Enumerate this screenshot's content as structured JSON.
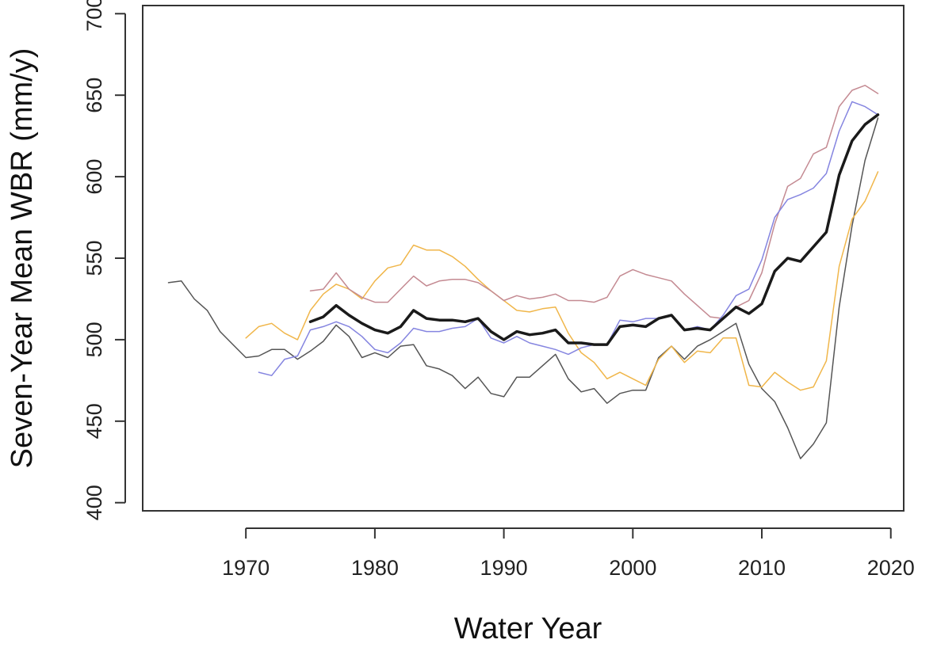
{
  "chart_data": {
    "type": "line",
    "title": "",
    "xlabel": "Water Year",
    "ylabel": "Seven-Year Mean WBR (mm/y)",
    "xlim": [
      1962,
      2021
    ],
    "ylim": [
      395,
      705
    ],
    "xticks": [
      1970,
      1980,
      1990,
      2000,
      2010,
      2020
    ],
    "yticks": [
      400,
      450,
      500,
      550,
      600,
      650,
      700
    ],
    "grid": false,
    "legend": "none",
    "series": [
      {
        "color": "#555555",
        "width": 1.5,
        "x": [
          1964,
          1965,
          1966,
          1967,
          1968,
          1969,
          1970,
          1971,
          1972,
          1973,
          1974,
          1975,
          1976,
          1977,
          1978,
          1979,
          1980,
          1981,
          1982,
          1983,
          1984,
          1985,
          1986,
          1987,
          1988,
          1989,
          1990,
          1991,
          1992,
          1993,
          1994,
          1995,
          1996,
          1997,
          1998,
          1999,
          2000,
          2001,
          2002,
          2003,
          2004,
          2005,
          2006,
          2007,
          2008,
          2009,
          2010,
          2011,
          2012,
          2013,
          2014,
          2015,
          2016,
          2017,
          2018,
          2019
        ],
        "y": [
          535,
          536,
          525,
          518,
          505,
          497,
          489,
          490,
          494,
          494,
          488,
          493,
          499,
          509,
          502,
          489,
          492,
          489,
          496,
          497,
          484,
          482,
          478,
          470,
          477,
          467,
          465,
          477,
          477,
          484,
          491,
          476,
          468,
          470,
          461,
          467,
          469,
          469,
          489,
          496,
          488,
          496,
          500,
          505,
          510,
          485,
          470,
          462,
          446,
          427,
          436,
          449,
          520,
          570,
          610,
          636
        ]
      },
      {
        "color": "#f0b64a",
        "width": 1.5,
        "x": [
          1970,
          1971,
          1972,
          1973,
          1974,
          1975,
          1976,
          1977,
          1978,
          1979,
          1980,
          1981,
          1982,
          1983,
          1984,
          1985,
          1986,
          1987,
          1988,
          1989,
          1990,
          1991,
          1992,
          1993,
          1994,
          1995,
          1996,
          1997,
          1998,
          1999,
          2000,
          2001,
          2002,
          2003,
          2004,
          2005,
          2006,
          2007,
          2008,
          2009,
          2010,
          2011,
          2012,
          2013,
          2014,
          2015,
          2016,
          2017,
          2018,
          2019
        ],
        "y": [
          501,
          508,
          510,
          504,
          500,
          518,
          528,
          534,
          531,
          525,
          536,
          544,
          546,
          558,
          555,
          555,
          551,
          545,
          537,
          530,
          524,
          518,
          517,
          519,
          520,
          504,
          492,
          486,
          476,
          480,
          476,
          472,
          488,
          496,
          486,
          493,
          492,
          501,
          501,
          472,
          471,
          480,
          474,
          469,
          471,
          487,
          545,
          574,
          585,
          603
        ]
      },
      {
        "color": "#c48a92",
        "width": 1.5,
        "x": [
          1975,
          1976,
          1977,
          1978,
          1979,
          1980,
          1981,
          1982,
          1983,
          1984,
          1985,
          1986,
          1987,
          1988,
          1989,
          1990,
          1991,
          1992,
          1993,
          1994,
          1995,
          1996,
          1997,
          1998,
          1999,
          2000,
          2001,
          2002,
          2003,
          2004,
          2005,
          2006,
          2007,
          2008,
          2009,
          2010,
          2011,
          2012,
          2013,
          2014,
          2015,
          2016,
          2017,
          2018,
          2019
        ],
        "y": [
          530,
          531,
          541,
          531,
          526,
          523,
          523,
          531,
          539,
          533,
          536,
          537,
          537,
          535,
          530,
          524,
          527,
          525,
          526,
          528,
          524,
          524,
          523,
          526,
          539,
          543,
          540,
          538,
          536,
          528,
          521,
          514,
          513,
          520,
          524,
          541,
          571,
          594,
          599,
          614,
          618,
          643,
          653,
          656,
          651
        ]
      },
      {
        "color": "#8585e0",
        "width": 1.5,
        "x": [
          1971,
          1972,
          1973,
          1974,
          1975,
          1976,
          1977,
          1978,
          1979,
          1980,
          1981,
          1982,
          1983,
          1984,
          1985,
          1986,
          1987,
          1988,
          1989,
          1990,
          1991,
          1992,
          1993,
          1994,
          1995,
          1996,
          1997,
          1998,
          1999,
          2000,
          2001,
          2002,
          2003,
          2004,
          2005,
          2006,
          2007,
          2008,
          2009,
          2010,
          2011,
          2012,
          2013,
          2014,
          2015,
          2016,
          2017,
          2018,
          2019
        ],
        "y": [
          480,
          478,
          488,
          490,
          506,
          508,
          511,
          508,
          502,
          494,
          492,
          498,
          507,
          505,
          505,
          507,
          508,
          513,
          501,
          498,
          502,
          498,
          496,
          494,
          491,
          495,
          497,
          497,
          512,
          511,
          513,
          513,
          515,
          506,
          508,
          506,
          515,
          527,
          531,
          549,
          575,
          586,
          589,
          593,
          602,
          628,
          646,
          643,
          638
        ]
      },
      {
        "color": "#1a1a1a",
        "width": 3.5,
        "x": [
          1975,
          1976,
          1977,
          1978,
          1979,
          1980,
          1981,
          1982,
          1983,
          1984,
          1985,
          1986,
          1987,
          1988,
          1989,
          1990,
          1991,
          1992,
          1993,
          1994,
          1995,
          1996,
          1997,
          1998,
          1999,
          2000,
          2001,
          2002,
          2003,
          2004,
          2005,
          2006,
          2007,
          2008,
          2009,
          2010,
          2011,
          2012,
          2013,
          2014,
          2015,
          2016,
          2017,
          2018,
          2019
        ],
        "y": [
          511,
          514,
          521,
          515,
          510,
          506,
          504,
          508,
          518,
          513,
          512,
          512,
          511,
          513,
          505,
          500,
          505,
          503,
          504,
          506,
          498,
          498,
          497,
          497,
          508,
          509,
          508,
          513,
          515,
          506,
          507,
          506,
          513,
          520,
          516,
          522,
          542,
          550,
          548,
          557,
          566,
          601,
          622,
          632,
          638
        ]
      }
    ]
  }
}
